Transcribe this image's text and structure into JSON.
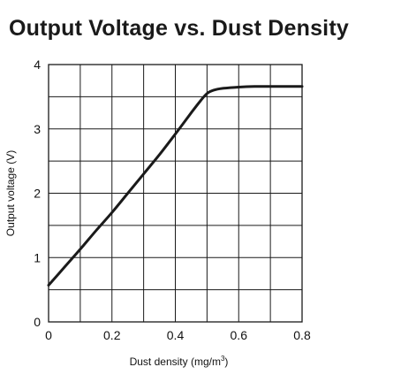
{
  "chart_data": {
    "type": "line",
    "title": "Output Voltage vs. Dust Density",
    "xlabel": "Dust density (mg/m",
    "xlabel_superscript": "3",
    "xlabel_suffix": ")",
    "ylabel": "Output voltage (V)",
    "xlim": [
      0,
      0.8
    ],
    "ylim": [
      0,
      4
    ],
    "x_ticks": [
      "0",
      "0.2",
      "0.4",
      "0.6",
      "0.8"
    ],
    "y_ticks": [
      "0",
      "1",
      "2",
      "3",
      "4"
    ],
    "grid": true,
    "x_grid_step": 0.1,
    "y_grid_step": 0.5,
    "series": [
      {
        "x": [
          0,
          0.05,
          0.1,
          0.15,
          0.2,
          0.25,
          0.3,
          0.35,
          0.4,
          0.45,
          0.48,
          0.5,
          0.52,
          0.55,
          0.6,
          0.65,
          0.7,
          0.75,
          0.8
        ],
        "y": [
          0.57,
          0.85,
          1.13,
          1.42,
          1.7,
          2.0,
          2.3,
          2.6,
          2.92,
          3.25,
          3.44,
          3.55,
          3.6,
          3.63,
          3.65,
          3.66,
          3.66,
          3.66,
          3.66
        ],
        "color": "#1a1a1a"
      }
    ]
  }
}
